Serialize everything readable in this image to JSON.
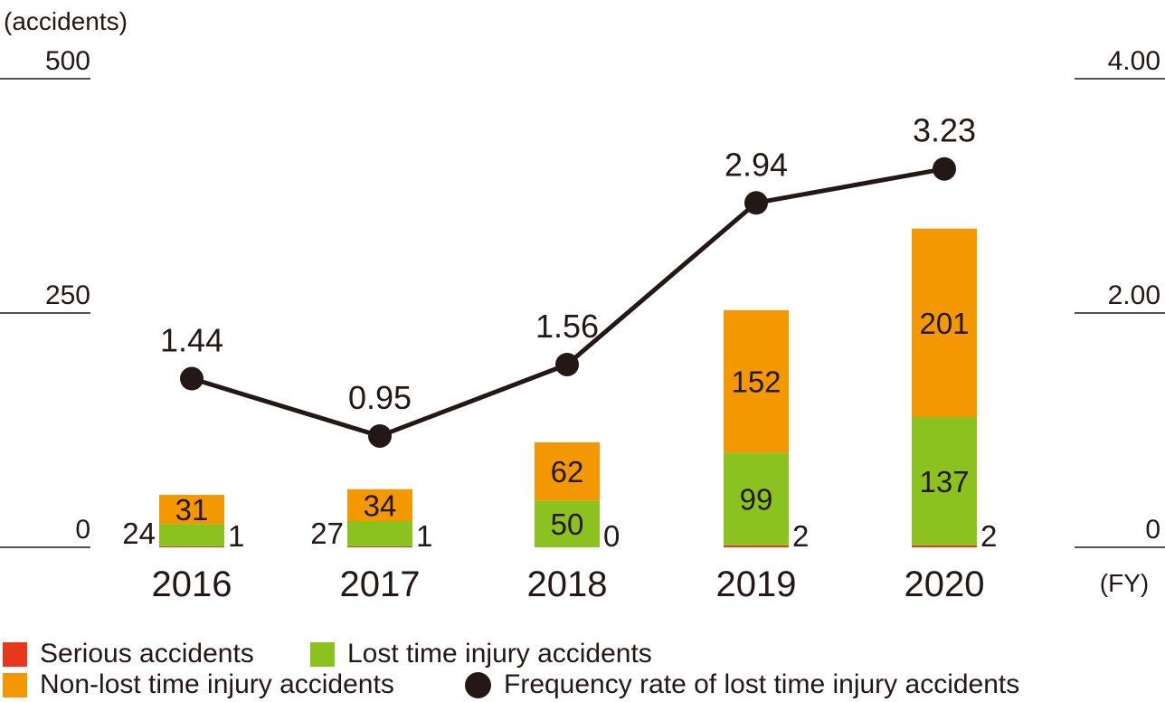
{
  "chart_data": {
    "type": "bar",
    "stacked": true,
    "categories": [
      "2016",
      "2017",
      "2018",
      "2019",
      "2020"
    ],
    "x_unit": "(FY)",
    "left_axis": {
      "unit": "(accidents)",
      "ticks": [
        "500",
        "250",
        "0"
      ],
      "range": [
        0,
        500
      ]
    },
    "right_axis": {
      "ticks": [
        "4.00",
        "2.00",
        "0"
      ],
      "range": [
        0,
        4
      ]
    },
    "series": [
      {
        "name": "Serious accidents",
        "color": "#e8381b",
        "values": [
          1,
          1,
          0,
          2,
          2
        ],
        "labels": [
          "1",
          "1",
          "0",
          "2",
          "2"
        ]
      },
      {
        "name": "Lost time injury accidents",
        "color": "#8cc21f",
        "values": [
          24,
          27,
          50,
          99,
          137
        ],
        "labels": [
          "24",
          "27",
          "50",
          "99",
          "137"
        ]
      },
      {
        "name": "Non-lost time injury accidents",
        "color": "#f39800",
        "values": [
          31,
          34,
          62,
          152,
          201
        ],
        "labels": [
          "31",
          "34",
          "62",
          "152",
          "201"
        ]
      }
    ],
    "line_series": {
      "name": "Frequency rate of lost time injury accidents",
      "color": "#231815",
      "axis": "right",
      "values": [
        1.44,
        0.95,
        1.56,
        2.94,
        3.23
      ],
      "labels": [
        "1.44",
        "0.95",
        "1.56",
        "2.94",
        "3.23"
      ]
    },
    "legend_position": "bottom-left",
    "grid": false
  }
}
